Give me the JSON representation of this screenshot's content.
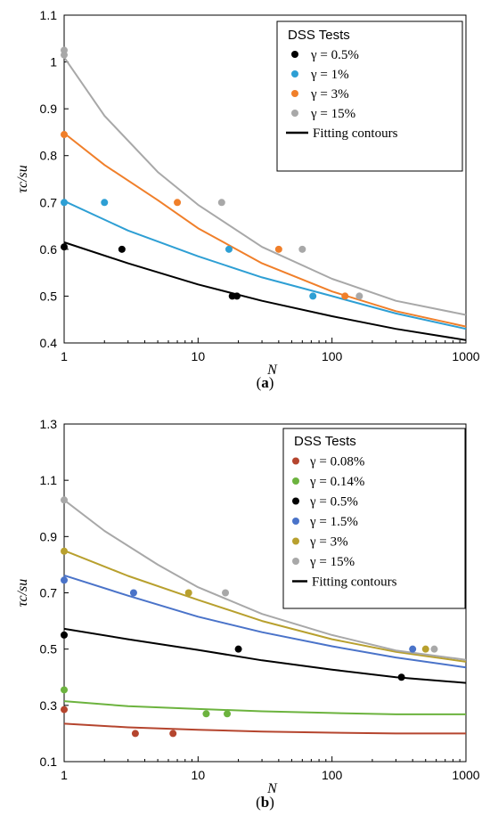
{
  "chart_data": [
    {
      "type": "scatter",
      "panel_label": "(a)",
      "xlabel": "N",
      "ylabel": "τc/su",
      "xscale": "log",
      "xlim": [
        1,
        1000
      ],
      "ylim": [
        0.4,
        1.1
      ],
      "x_ticks": [
        "1",
        "10",
        "100",
        "1000"
      ],
      "y_ticks": [
        "0.4",
        "0.5",
        "0.6",
        "0.7",
        "0.8",
        "0.9",
        "1",
        "1.1"
      ],
      "grid": false,
      "legend_title": "DSS Tests",
      "legend_position": "top-right",
      "fit_label": "Fitting  contours",
      "series": [
        {
          "name": "γ = 0.5%",
          "color": "#000000",
          "points": [
            [
              1,
              0.605
            ],
            [
              2.7,
              0.6
            ],
            [
              18,
              0.5
            ],
            [
              19.5,
              0.5
            ]
          ],
          "fit": [
            [
              1,
              0.615
            ],
            [
              3,
              0.57
            ],
            [
              10,
              0.525
            ],
            [
              30,
              0.49
            ],
            [
              100,
              0.457
            ],
            [
              300,
              0.43
            ],
            [
              1000,
              0.406
            ]
          ],
          "fit_color": "#000000"
        },
        {
          "name": "γ = 1%",
          "color": "#2e9fd4",
          "points": [
            [
              1,
              0.7
            ],
            [
              2,
              0.7
            ],
            [
              17,
              0.6
            ],
            [
              72,
              0.5
            ]
          ],
          "fit": [
            [
              1,
              0.703
            ],
            [
              3,
              0.64
            ],
            [
              10,
              0.585
            ],
            [
              30,
              0.54
            ],
            [
              100,
              0.5
            ],
            [
              300,
              0.463
            ],
            [
              1000,
              0.43
            ]
          ],
          "fit_color": "#2e9fd4"
        },
        {
          "name": "γ = 3%",
          "color": "#f07f2a",
          "points": [
            [
              1,
              0.845
            ],
            [
              7,
              0.7
            ],
            [
              40,
              0.6
            ],
            [
              125,
              0.5
            ]
          ],
          "fit": [
            [
              1,
              0.848
            ],
            [
              2,
              0.78
            ],
            [
              5,
              0.705
            ],
            [
              10,
              0.645
            ],
            [
              30,
              0.57
            ],
            [
              100,
              0.51
            ],
            [
              300,
              0.468
            ],
            [
              1000,
              0.435
            ]
          ],
          "fit_color": "#f07f2a"
        },
        {
          "name": "γ = 15%",
          "color": "#a8a8a8",
          "points": [
            [
              1,
              1.025
            ],
            [
              1,
              1.015
            ],
            [
              15,
              0.7
            ],
            [
              60,
              0.6
            ],
            [
              160,
              0.5
            ]
          ],
          "fit": [
            [
              1,
              1.01
            ],
            [
              2,
              0.885
            ],
            [
              5,
              0.765
            ],
            [
              10,
              0.695
            ],
            [
              30,
              0.605
            ],
            [
              100,
              0.537
            ],
            [
              300,
              0.49
            ],
            [
              1000,
              0.46
            ]
          ],
          "fit_color": "#a8a8a8"
        }
      ]
    },
    {
      "type": "scatter",
      "panel_label": "(b)",
      "xlabel": "N",
      "ylabel": "τc/su",
      "xscale": "log",
      "xlim": [
        1,
        1000
      ],
      "ylim": [
        0.1,
        1.3
      ],
      "x_ticks": [
        "1",
        "10",
        "100",
        "1000"
      ],
      "y_ticks": [
        "0.1",
        "0.3",
        "0.5",
        "0.7",
        "0.9",
        "1.1",
        "1.3"
      ],
      "grid": false,
      "legend_title": "DSS Tests",
      "legend_position": "top-right",
      "fit_label": "Fitting  contours",
      "series": [
        {
          "name": "γ = 0.08%",
          "color": "#b5452e",
          "points": [
            [
              1,
              0.285
            ],
            [
              3.4,
              0.2
            ],
            [
              6.5,
              0.2
            ]
          ],
          "fit": [
            [
              1,
              0.235
            ],
            [
              3,
              0.222
            ],
            [
              10,
              0.213
            ],
            [
              30,
              0.207
            ],
            [
              100,
              0.203
            ],
            [
              300,
              0.2
            ],
            [
              1000,
              0.2
            ]
          ],
          "fit_color": "#b5452e"
        },
        {
          "name": "γ = 0.14%",
          "color": "#6cb33e",
          "points": [
            [
              1,
              0.355
            ],
            [
              11.5,
              0.27
            ],
            [
              16.5,
              0.27
            ]
          ],
          "fit": [
            [
              1,
              0.315
            ],
            [
              3,
              0.297
            ],
            [
              10,
              0.287
            ],
            [
              30,
              0.279
            ],
            [
              100,
              0.273
            ],
            [
              300,
              0.268
            ],
            [
              1000,
              0.268
            ]
          ],
          "fit_color": "#6cb33e"
        },
        {
          "name": "γ = 0.5%",
          "color": "#000000",
          "points": [
            [
              1,
              0.55
            ],
            [
              20,
              0.5
            ],
            [
              330,
              0.4
            ]
          ],
          "fit": [
            [
              1,
              0.572
            ],
            [
              3,
              0.535
            ],
            [
              10,
              0.497
            ],
            [
              30,
              0.46
            ],
            [
              100,
              0.427
            ],
            [
              300,
              0.4
            ],
            [
              1000,
              0.38
            ]
          ],
          "fit_color": "#000000"
        },
        {
          "name": "γ = 1.5%",
          "color": "#4a73c9",
          "points": [
            [
              1,
              0.745
            ],
            [
              3.3,
              0.7
            ],
            [
              400,
              0.5
            ]
          ],
          "fit": [
            [
              1,
              0.762
            ],
            [
              3,
              0.69
            ],
            [
              10,
              0.615
            ],
            [
              30,
              0.56
            ],
            [
              100,
              0.51
            ],
            [
              300,
              0.47
            ],
            [
              1000,
              0.435
            ]
          ],
          "fit_color": "#4a73c9"
        },
        {
          "name": "γ = 3%",
          "color": "#b8a02e",
          "points": [
            [
              1,
              0.848
            ],
            [
              8.5,
              0.7
            ],
            [
              500,
              0.5
            ]
          ],
          "fit": [
            [
              1,
              0.85
            ],
            [
              3,
              0.76
            ],
            [
              10,
              0.675
            ],
            [
              30,
              0.6
            ],
            [
              100,
              0.535
            ],
            [
              300,
              0.49
            ],
            [
              1000,
              0.455
            ]
          ],
          "fit_color": "#b8a02e"
        },
        {
          "name": "γ = 15%",
          "color": "#a8a8a8",
          "points": [
            [
              1,
              1.03
            ],
            [
              16,
              0.7
            ],
            [
              580,
              0.5
            ]
          ],
          "fit": [
            [
              1,
              1.03
            ],
            [
              2,
              0.92
            ],
            [
              5,
              0.8
            ],
            [
              10,
              0.72
            ],
            [
              30,
              0.625
            ],
            [
              100,
              0.55
            ],
            [
              300,
              0.495
            ],
            [
              1000,
              0.462
            ]
          ],
          "fit_color": "#a8a8a8"
        }
      ]
    }
  ]
}
